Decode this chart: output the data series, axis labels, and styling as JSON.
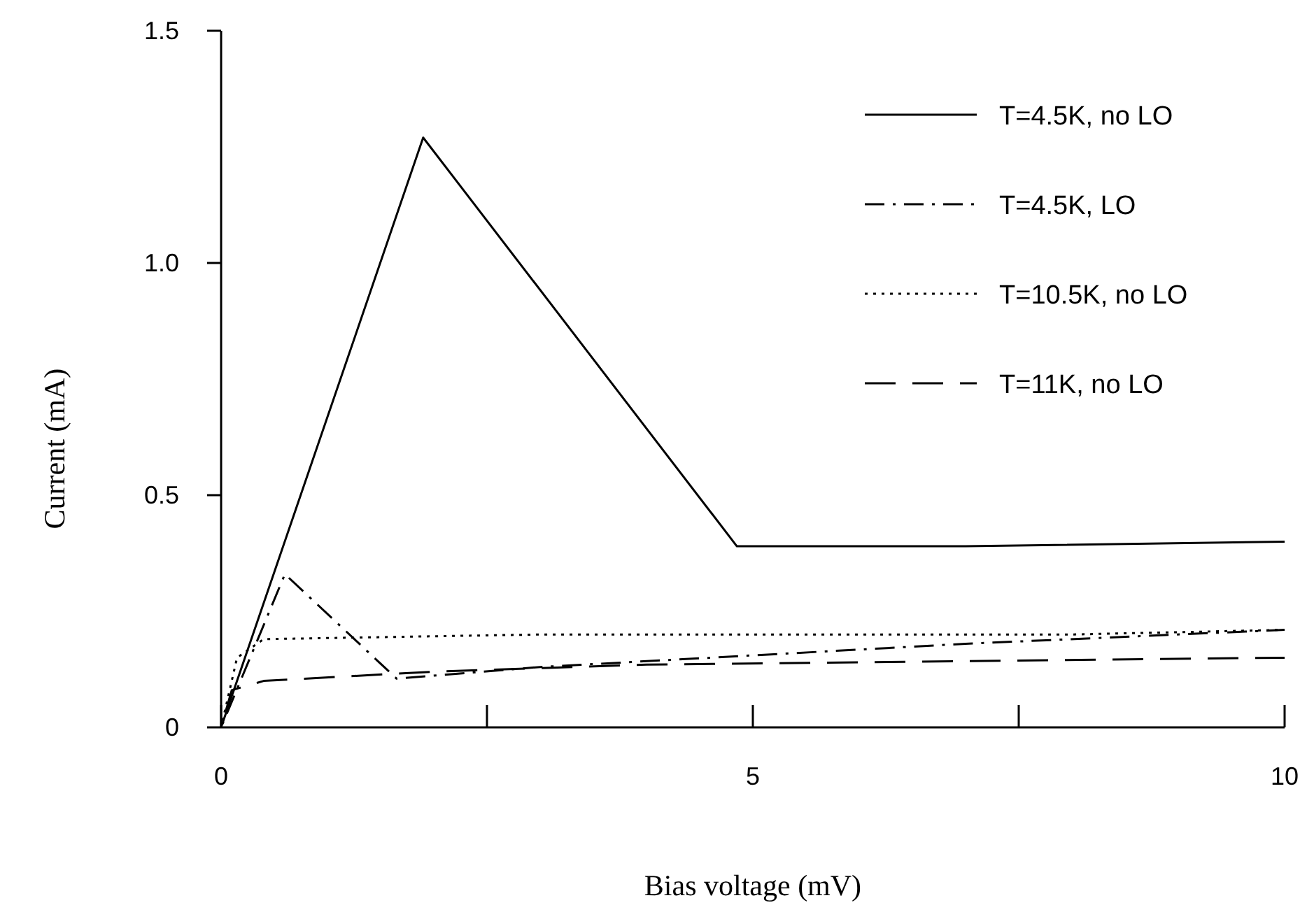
{
  "chart_data": {
    "type": "line",
    "xlabel": "Bias voltage (mV)",
    "ylabel": "Current (mA)",
    "xlim": [
      0,
      10
    ],
    "xticks": [
      0,
      {
        "value": 2.5,
        "label": null
      },
      5,
      {
        "value": 7.5,
        "label": null
      },
      10
    ],
    "ylim": [
      0,
      1.5
    ],
    "yticks": [
      0,
      0.5,
      {
        "value": 1,
        "label": "1.0"
      },
      1.5
    ],
    "legend": "top right",
    "grid": false,
    "marker": "none",
    "series": [
      {
        "name": "T=4.5K, no LO",
        "color": "#000000",
        "line_style": "solid",
        "x": [
          0,
          1.9,
          4.85,
          7,
          10
        ],
        "values": [
          0,
          1.27,
          0.39,
          0.39,
          0.4
        ]
      },
      {
        "name": "T=4.5K, LO",
        "color": "#000000",
        "line_style": "dashdot",
        "x": [
          0,
          0.6,
          1.65,
          3,
          5,
          7,
          10
        ],
        "values": [
          0,
          0.33,
          0.105,
          0.13,
          0.155,
          0.18,
          0.21
        ]
      },
      {
        "name": "T=10.5K, no LO",
        "color": "#000000",
        "line_style": "dotted",
        "x": [
          0,
          0.15,
          0.4,
          3,
          6,
          8,
          10
        ],
        "values": [
          0,
          0.15,
          0.19,
          0.2,
          0.2,
          0.2,
          0.21
        ]
      },
      {
        "name": "T=11K, no LO",
        "color": "#000000",
        "line_style": "dashed",
        "x": [
          0,
          0.1,
          0.4,
          2,
          4,
          6,
          10
        ],
        "values": [
          0,
          0.08,
          0.1,
          0.12,
          0.135,
          0.14,
          0.15
        ]
      }
    ]
  }
}
